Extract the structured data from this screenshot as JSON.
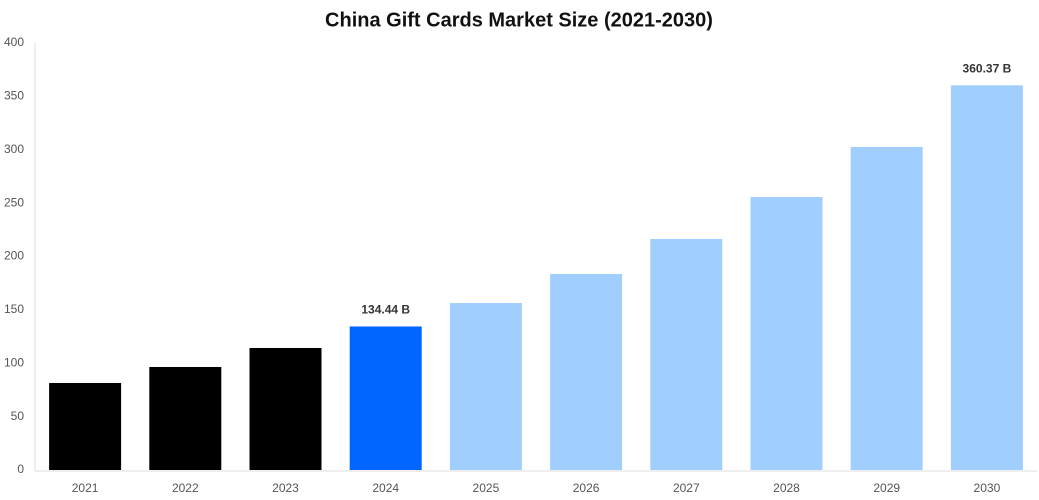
{
  "chart_data": {
    "type": "bar",
    "title": "China Gift Cards Market Size (2021-2030)",
    "categories": [
      "2021",
      "2022",
      "2023",
      "2024",
      "2025",
      "2026",
      "2027",
      "2028",
      "2029",
      "2030"
    ],
    "values": [
      81.5,
      96.5,
      114.3,
      134.44,
      156.4,
      183.6,
      216.4,
      255.7,
      302.6,
      360.37
    ],
    "value_labels": [
      null,
      null,
      null,
      "134.44 B",
      null,
      null,
      null,
      null,
      null,
      "360.37 B"
    ],
    "colors": [
      "#000000",
      "#000000",
      "#000000",
      "#0066ff",
      "#a0cfff",
      "#a0cfff",
      "#a0cfff",
      "#a0cfff",
      "#a0cfff",
      "#a0cfff"
    ],
    "ylim": [
      0,
      400
    ],
    "yticks": [
      0,
      50,
      100,
      150,
      200,
      250,
      300,
      350,
      400
    ],
    "grid": false
  }
}
